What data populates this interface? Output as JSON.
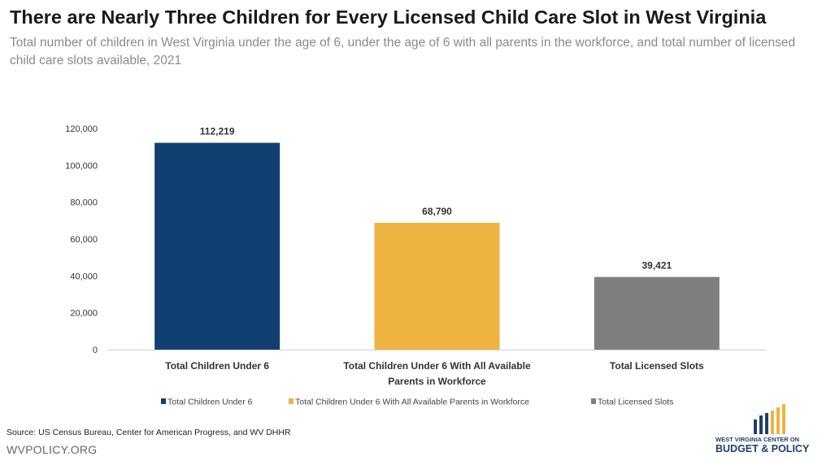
{
  "title": "There are Nearly Three Children for Every Licensed Child Care Slot in West Virginia",
  "subtitle": "Total number of children in West Virginia under the age of 6, under the age of 6 with all parents in the workforce, and total number of licensed child care slots available, 2021",
  "source": "Source: US Census Bureau, Center for American Progress, and WV DHHR",
  "site": "WVPOLICY.ORG",
  "logo": {
    "line1": "WEST VIRGINIA CENTER ON",
    "line2": "BUDGET & POLICY",
    "colors": [
      "#1f3f6e",
      "#efb342"
    ]
  },
  "chart_data": {
    "type": "bar",
    "categories": [
      "Total Children Under 6",
      "Total Children Under 6 With All Available Parents in Workforce",
      "Total Licensed Slots"
    ],
    "category_labels": [
      [
        "Total Children Under 6"
      ],
      [
        "Total Children Under 6 With All Available",
        "Parents in Workforce"
      ],
      [
        "Total Licensed Slots"
      ]
    ],
    "values": [
      112219,
      68790,
      39421
    ],
    "data_labels": [
      "112,219",
      "68,790",
      "39,421"
    ],
    "colors": [
      "#123f72",
      "#efb342",
      "#7f7f7f"
    ],
    "ylim": [
      0,
      120000
    ],
    "yticks": [
      0,
      20000,
      40000,
      60000,
      80000,
      100000,
      120000
    ],
    "ytick_labels": [
      "0",
      "20,000",
      "40,000",
      "60,000",
      "80,000",
      "100,000",
      "120,000"
    ],
    "grid": false,
    "legend_position": "bottom",
    "legend": [
      "Total Children Under 6",
      "Total Children Under 6 With All Available Parents in Workforce",
      "Total Licensed Slots"
    ]
  }
}
